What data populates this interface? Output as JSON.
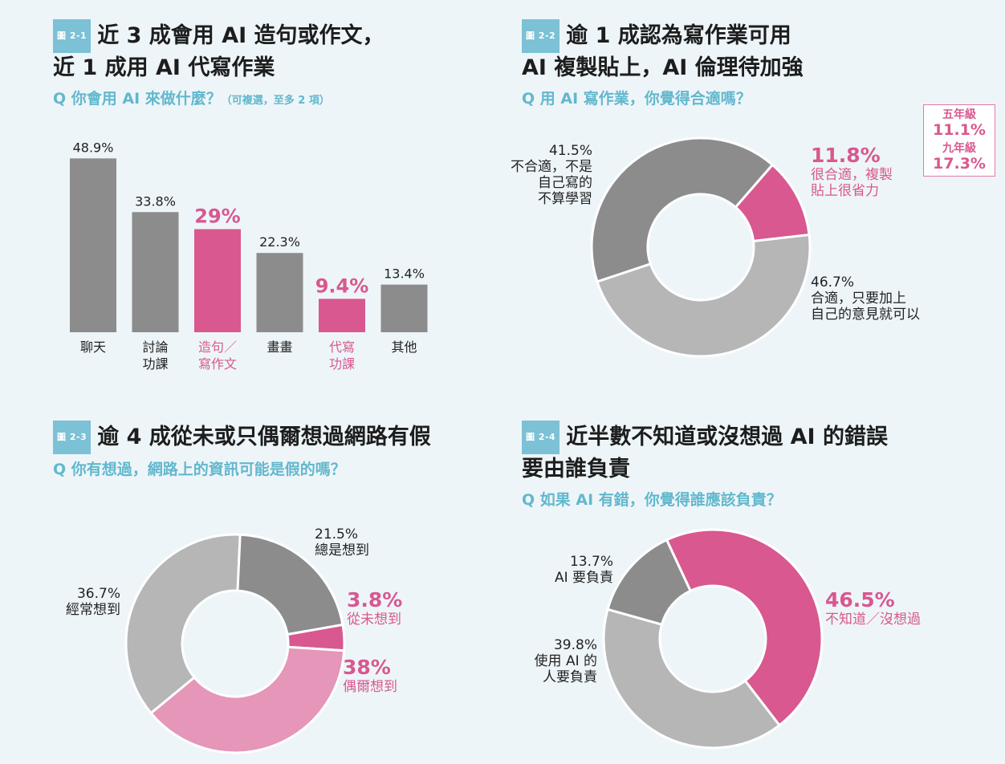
{
  "colors": {
    "dark_gray": "#8c8c8c",
    "light_gray": "#b6b6b6",
    "pink": "#d8588f",
    "light_pink": "#e596b9",
    "accent_blue": "#62b8cd"
  },
  "p1": {
    "tag": "圖 2-1",
    "title_line1": "近 3 成會用 AI 造句或作文，",
    "title_line2": "近 1 成用 AI 代寫作業",
    "question": "Q 你會用 AI 來做什麼？",
    "question_note": "（可複選，至多 2 項）"
  },
  "p2": {
    "tag": "圖 2-2",
    "title_line1": "逾 1 成認為寫作業可用",
    "title_line2": "AI 複製貼上，AI 倫理待加強",
    "question": "Q 用 AI 寫作業，你覺得合適嗎？",
    "callout": {
      "g5_label": "五年級",
      "g5_value": "11.1%",
      "g9_label": "九年級",
      "g9_value": "17.3%"
    }
  },
  "p3": {
    "tag": "圖 2-3",
    "title_line1": "逾 4 成從未或只偶爾想過網路有假",
    "question": "Q 你有想過，網路上的資訊可能是假的嗎？"
  },
  "p4": {
    "tag": "圖 2-4",
    "title_line1": "近半數不知道或沒想過 AI 的錯誤",
    "title_line2": "要由誰負責",
    "question": "Q 如果 AI 有錯，你覺得誰應該負責？"
  },
  "chart_data": [
    {
      "type": "bar",
      "categories": [
        "聊天",
        "討論功課",
        "造句／寫作文",
        "畫畫",
        "代寫功課",
        "其他"
      ],
      "category_lines": [
        [
          "聊天"
        ],
        [
          "討論",
          "功課"
        ],
        [
          "造句／",
          "寫作文"
        ],
        [
          "畫畫"
        ],
        [
          "代寫",
          "功課"
        ],
        [
          "其他"
        ]
      ],
      "values": [
        48.9,
        33.8,
        29,
        22.3,
        9.4,
        13.4
      ],
      "value_labels": [
        "48.9%",
        "33.8%",
        "29%",
        "22.3%",
        "9.4%",
        "13.4%"
      ],
      "highlight": [
        false,
        false,
        true,
        false,
        true,
        false
      ]
    },
    {
      "type": "pie",
      "slices": [
        {
          "value": 11.8,
          "label": "11.8%",
          "text_line1": "很合適，複製",
          "text_line2": "貼上很省力",
          "color": "#d8588f"
        },
        {
          "value": 46.7,
          "label": "46.7%",
          "text_line1": "合適，只要加上",
          "text_line2": "自己的意見就可以",
          "color": "#b6b6b6"
        },
        {
          "value": 41.5,
          "label": "41.5%",
          "text_line1": "不合適，不是",
          "text_line2": "自己寫的",
          "text_line3": "不算學習",
          "color": "#8c8c8c"
        }
      ]
    },
    {
      "type": "pie",
      "slices": [
        {
          "value": 3.8,
          "label": "3.8%",
          "text_line1": "從未想到",
          "color": "#d8588f"
        },
        {
          "value": 38,
          "label": "38%",
          "text_line1": "偶爾想到",
          "color": "#e596b9"
        },
        {
          "value": 36.7,
          "label": "36.7%",
          "text_line1": "經常想到",
          "color": "#b6b6b6"
        },
        {
          "value": 21.5,
          "label": "21.5%",
          "text_line1": "總是想到",
          "color": "#8c8c8c"
        }
      ]
    },
    {
      "type": "pie",
      "slices": [
        {
          "value": 46.5,
          "label": "46.5%",
          "text_line1": "不知道／沒想過",
          "color": "#d8588f"
        },
        {
          "value": 39.8,
          "label": "39.8%",
          "text_line1": "使用 AI 的",
          "text_line2": "人要負責",
          "color": "#b6b6b6"
        },
        {
          "value": 13.7,
          "label": "13.7%",
          "text_line1": "AI 要負責",
          "color": "#8c8c8c"
        }
      ]
    }
  ]
}
